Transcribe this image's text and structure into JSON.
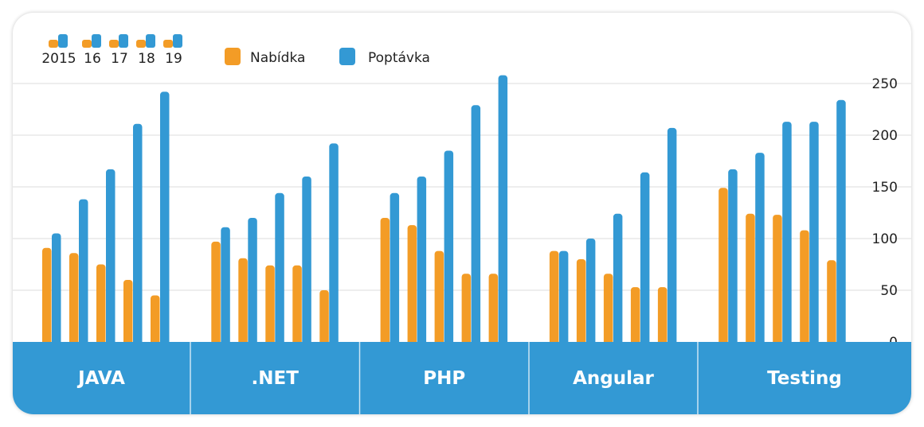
{
  "chart_data": {
    "type": "bar",
    "categories": [
      "JAVA",
      ".NET",
      "PHP",
      "Angular",
      "Testing"
    ],
    "years": [
      "2015",
      "16",
      "17",
      "18",
      "19"
    ],
    "series": [
      {
        "name": "Nabídka",
        "color": "#f39c26",
        "values": [
          [
            91,
            86,
            75,
            60,
            45
          ],
          [
            97,
            81,
            74,
            74,
            50
          ],
          [
            120,
            113,
            88,
            66,
            66
          ],
          [
            88,
            80,
            66,
            53,
            53
          ],
          [
            149,
            124,
            123,
            108,
            79
          ]
        ]
      },
      {
        "name": "Poptávka",
        "color": "#3399d4",
        "values": [
          [
            105,
            138,
            167,
            211,
            242
          ],
          [
            111,
            120,
            144,
            160,
            192
          ],
          [
            144,
            160,
            185,
            229,
            258
          ],
          [
            88,
            100,
            124,
            164,
            207
          ],
          [
            167,
            183,
            213,
            213,
            234
          ]
        ]
      }
    ],
    "ylim": [
      0,
      250
    ],
    "yticks": [
      0,
      50,
      100,
      150,
      200,
      250
    ],
    "grid": true,
    "legend": "top-left",
    "category_bar_color": "#3399d4"
  }
}
